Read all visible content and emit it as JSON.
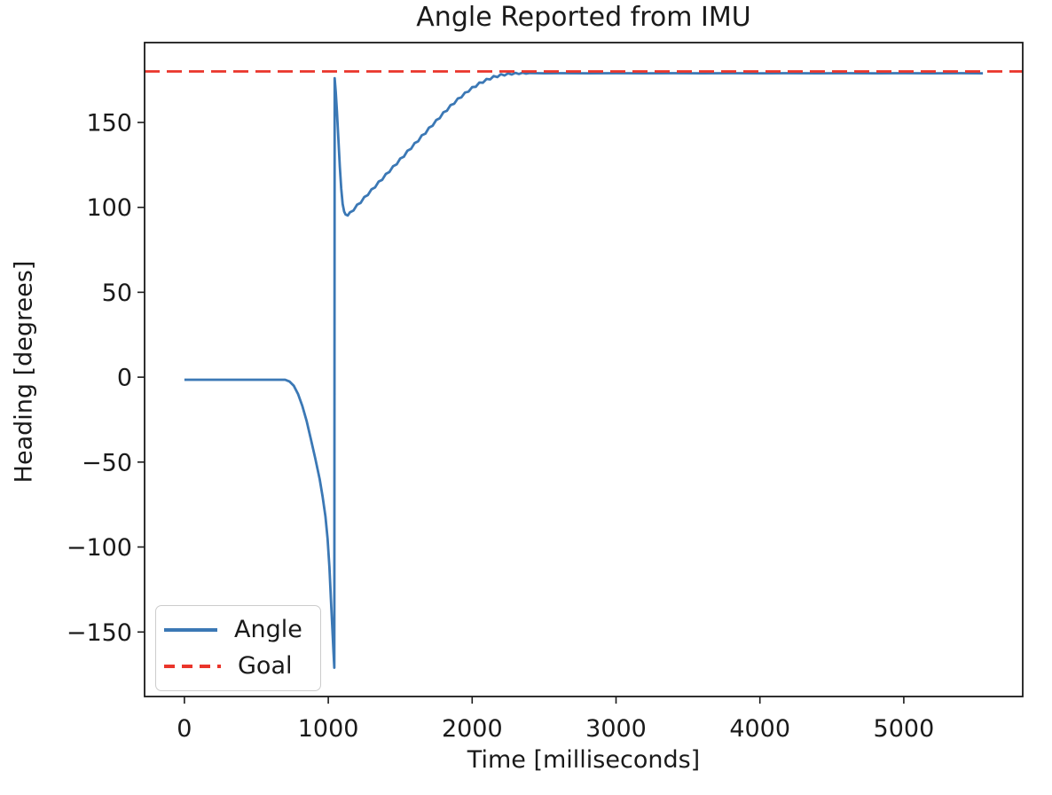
{
  "chart_data": {
    "type": "line",
    "title": "Angle Reported from IMU",
    "xlabel": "Time [milliseconds]",
    "ylabel": "Heading [degrees]",
    "xlim": [
      -277,
      5827
    ],
    "ylim": [
      -188,
      197
    ],
    "xticks": [
      0,
      1000,
      2000,
      3000,
      4000,
      5000
    ],
    "yticks": [
      -150,
      -100,
      -50,
      0,
      50,
      100,
      150
    ],
    "grid": false,
    "legend_position": "lower left",
    "frame_color": "#1a1a1a",
    "series": [
      {
        "name": "Angle",
        "kind": "line",
        "color": "#3b78b5",
        "linewidth": 2.8,
        "dash": null,
        "x": [
          0,
          100,
          200,
          300,
          400,
          500,
          600,
          700,
          730,
          760,
          790,
          820,
          850,
          880,
          910,
          940,
          960,
          980,
          995,
          1008,
          1018,
          1028,
          1036,
          1042,
          1044,
          1052,
          1060,
          1070,
          1080,
          1090,
          1100,
          1110,
          1120,
          1135,
          1150,
          1175,
          1200,
          1225,
          1250,
          1275,
          1300,
          1325,
          1350,
          1375,
          1400,
          1425,
          1450,
          1475,
          1500,
          1525,
          1550,
          1575,
          1600,
          1625,
          1650,
          1675,
          1700,
          1725,
          1750,
          1775,
          1800,
          1825,
          1850,
          1875,
          1900,
          1925,
          1950,
          1975,
          2000,
          2025,
          2050,
          2075,
          2100,
          2125,
          2150,
          2175,
          2200,
          2225,
          2250,
          2275,
          2300,
          2325,
          2350,
          2375,
          2400,
          2450,
          2500,
          2600,
          2800,
          3000,
          3200,
          3400,
          3600,
          3800,
          4000,
          4200,
          4400,
          4600,
          4800,
          5000,
          5200,
          5400,
          5550
        ],
        "y": [
          -1.5,
          -1.5,
          -1.5,
          -1.5,
          -1.5,
          -1.5,
          -1.5,
          -1.5,
          -2.5,
          -5,
          -10,
          -17,
          -26,
          -37,
          -48,
          -60,
          -70,
          -82,
          -95,
          -112,
          -130,
          -148,
          -162,
          -171,
          176,
          168,
          157,
          140,
          124,
          111,
          102,
          97.5,
          95.8,
          95.2,
          97.0,
          98.1,
          101.6,
          102.6,
          106.1,
          107.2,
          110.6,
          111.7,
          115.2,
          116.2,
          119.7,
          120.8,
          124.2,
          125.3,
          128.8,
          129.8,
          133.3,
          134.4,
          137.8,
          138.9,
          142.4,
          143.4,
          146.9,
          148.0,
          151.4,
          152.5,
          156.0,
          156.9,
          160.2,
          161.0,
          164.1,
          164.7,
          167.6,
          168.1,
          170.8,
          171.0,
          173.5,
          173.4,
          175.6,
          175.3,
          177.3,
          176.7,
          178.4,
          177.6,
          178.9,
          178.2,
          179.2,
          178.5,
          179.3,
          178.7,
          179.1,
          179.0,
          178.9,
          179.0,
          178.9,
          179.0,
          178.9,
          179.0,
          178.9,
          179.0,
          178.9,
          179.0,
          178.9,
          179.0,
          178.9,
          179.0,
          178.9,
          179.0,
          178.9
        ]
      },
      {
        "name": "Goal",
        "kind": "hline",
        "color": "#ea352b",
        "linewidth": 2.8,
        "dash": [
          17,
          8
        ],
        "y": 180,
        "x_start": -277,
        "x_end": 5827
      }
    ]
  }
}
